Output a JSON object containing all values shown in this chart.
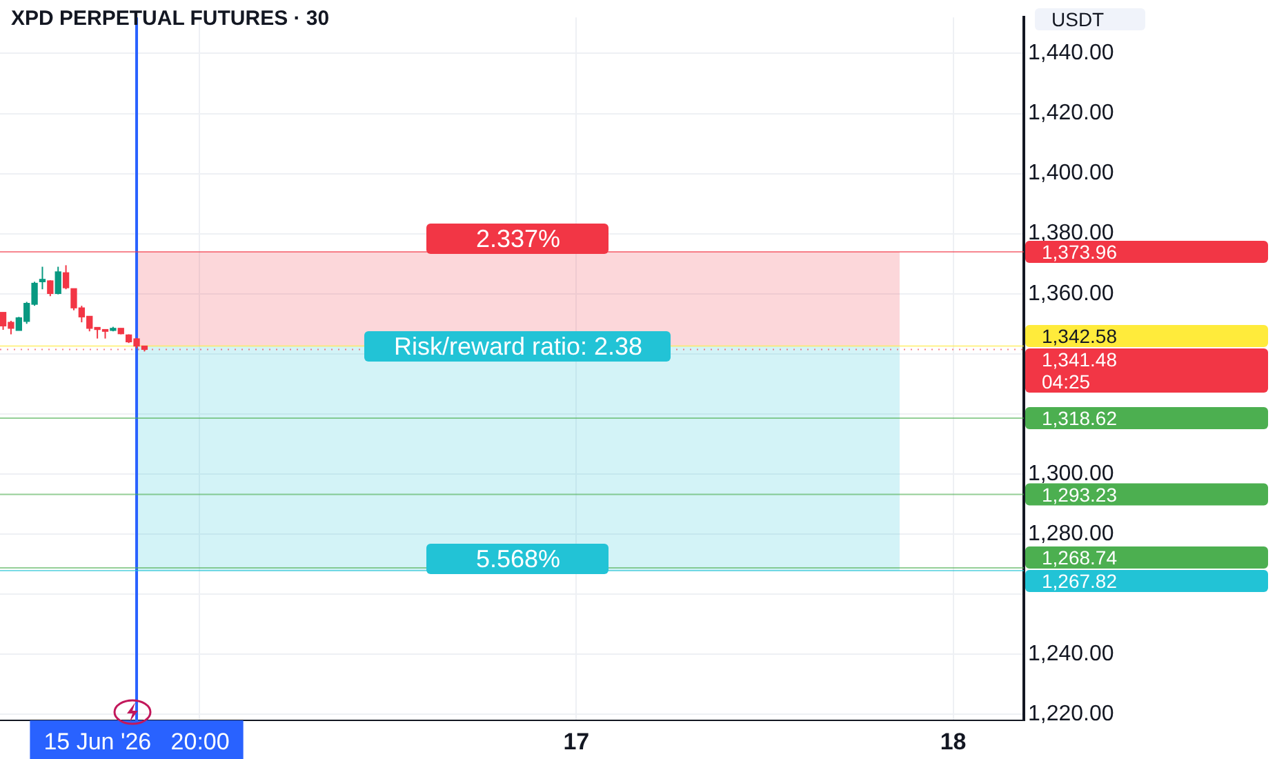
{
  "chart_data": {
    "type": "candlestick",
    "title": "XPD PERPETUAL FUTURES · 30",
    "ylabel": "USDT",
    "x": [
      "2026-06-15T11:30",
      "2026-06-15T12:00",
      "2026-06-15T12:30",
      "2026-06-15T13:00",
      "2026-06-15T13:30",
      "2026-06-15T14:00",
      "2026-06-15T14:30",
      "2026-06-15T15:00",
      "2026-06-15T15:30",
      "2026-06-15T16:00",
      "2026-06-15T16:30",
      "2026-06-15T17:00",
      "2026-06-15T17:30",
      "2026-06-15T18:00",
      "2026-06-15T18:30",
      "2026-06-15T19:00",
      "2026-06-15T19:30",
      "2026-06-15T20:00",
      "2026-06-15T20:30"
    ],
    "ohlc": [
      [
        1353.8,
        1353.8,
        1348.0,
        1349.3
      ],
      [
        1350.5,
        1351.0,
        1346.5,
        1348.5
      ],
      [
        1347.8,
        1352.3,
        1347.8,
        1352.0
      ],
      [
        1350.8,
        1357.3,
        1350.0,
        1356.8
      ],
      [
        1356.5,
        1364.0,
        1356.0,
        1363.5
      ],
      [
        1364.0,
        1369.0,
        1361.5,
        1364.8
      ],
      [
        1364.3,
        1364.5,
        1359.2,
        1360.1
      ],
      [
        1360.1,
        1369.0,
        1359.8,
        1367.3
      ],
      [
        1367.0,
        1369.5,
        1361.5,
        1362.0
      ],
      [
        1361.7,
        1361.7,
        1354.5,
        1355.3
      ],
      [
        1355.3,
        1356.0,
        1350.5,
        1352.3
      ],
      [
        1352.5,
        1352.5,
        1347.5,
        1348.5
      ],
      [
        1348.8,
        1348.8,
        1345.1,
        1348.1
      ],
      [
        1348.1,
        1348.1,
        1345.1,
        1347.5
      ],
      [
        1347.8,
        1349.0,
        1347.5,
        1348.5
      ],
      [
        1348.5,
        1348.5,
        1346.5,
        1346.7
      ],
      [
        1346.3,
        1346.5,
        1343.6,
        1344.0
      ],
      [
        1345.0,
        1345.3,
        1341.8,
        1342.6
      ],
      [
        1342.6,
        1342.6,
        1340.8,
        1341.48
      ]
    ],
    "colors": [
      "#f23645",
      "#f23645",
      "#089981",
      "#089981",
      "#089981",
      "#089981",
      "#f23645",
      "#089981",
      "#f23645",
      "#f23645",
      "#f23645",
      "#f23645",
      "#f23645",
      "#f23645",
      "#089981",
      "#f23645",
      "#f23645",
      "#f23645",
      "#f23645"
    ],
    "xlim": [
      "2026-06-15T11:18",
      "2026-06-18T04:30"
    ],
    "xticks": [
      {
        "value": "2026-06-15T20:00",
        "label": "15 Jun '26   20:00"
      },
      {
        "value": "2026-06-16",
        "label": null
      },
      {
        "value": "2026-06-17",
        "label": "17"
      },
      {
        "value": "2026-06-18",
        "label": "18"
      }
    ],
    "ylim": [
      1218,
      1452
    ],
    "yticks": [
      {
        "value": 1220,
        "label": "1,220.00"
      },
      {
        "value": 1240,
        "label": "1,240.00"
      },
      {
        "value": 1260,
        "label": null
      },
      {
        "value": 1280,
        "label": "1,280.00"
      },
      {
        "value": 1300,
        "label": "1,300.00"
      },
      {
        "value": 1320,
        "label": null
      },
      {
        "value": 1340,
        "label": null
      },
      {
        "value": 1360,
        "label": "1,360.00"
      },
      {
        "value": 1380,
        "label": "1,380.00"
      },
      {
        "value": 1400,
        "label": "1,400.00"
      },
      {
        "value": 1420,
        "label": "1,420.00"
      },
      {
        "value": 1440,
        "label": "1,440.00"
      }
    ],
    "grid": true,
    "bands": [
      {
        "axis": "y",
        "from": 1342.58,
        "to": 1373.96,
        "label": "2.337%",
        "color": "#f23645"
      },
      {
        "axis": "y",
        "from": 1342.58,
        "to": 1267.82,
        "label": "5.568%",
        "color": "#22c3d6"
      }
    ],
    "ref_lines": [
      {
        "axis": "x",
        "value": "2026-06-15T20:00",
        "label": null,
        "color": "#2962ff"
      },
      {
        "axis": "y",
        "value": 1373.96,
        "label": "1,373.96",
        "color": "#f23645"
      },
      {
        "axis": "y",
        "value": 1342.58,
        "label": "1,342.58",
        "color": "#ffeb3b"
      },
      {
        "axis": "y",
        "value": 1341.48,
        "label": "1,341.48",
        "color": "#f23645",
        "line_style": "dotted"
      },
      {
        "axis": "y",
        "value": 1318.62,
        "label": "1,318.62",
        "color": "#4caf50"
      },
      {
        "axis": "y",
        "value": 1293.23,
        "label": "1,293.23",
        "color": "#4caf50"
      },
      {
        "axis": "y",
        "value": 1268.74,
        "label": "1,268.74",
        "color": "#4caf50"
      },
      {
        "axis": "y",
        "value": 1267.82,
        "label": "1,267.82",
        "color": "#22c3d6"
      }
    ],
    "annotations": [
      {
        "text": "Risk/reward ratio: 2.38",
        "y": 1342.58
      },
      "04:25"
    ]
  }
}
